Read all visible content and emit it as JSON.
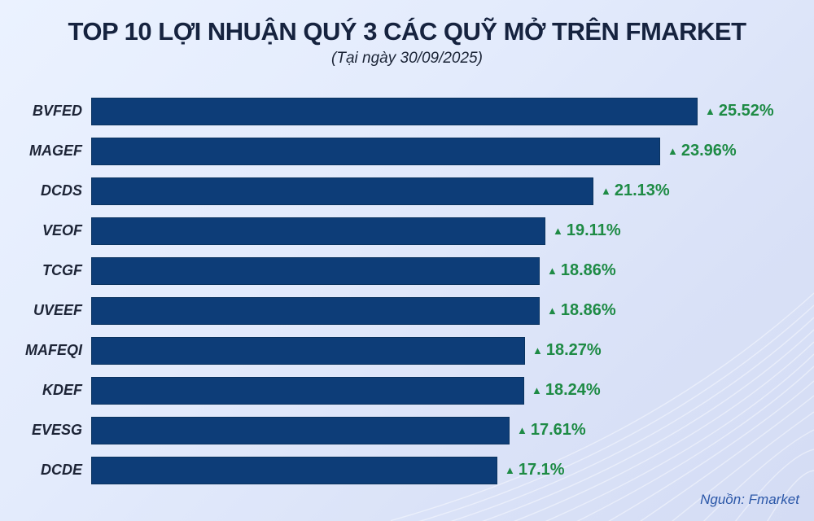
{
  "header": {
    "title": "TOP 10 LỢI NHUẬN QUÝ 3 CÁC QUỸ MỞ TRÊN FMARKET",
    "subtitle": "(Tại ngày 30/09/2025)"
  },
  "footer": {
    "source": "Nguồn: Fmarket"
  },
  "colors": {
    "bar": "#0d3d78",
    "value_text": "#1e8b45",
    "title_text": "#16233f",
    "source_text": "#2b57a8",
    "background_start": "#ebf2ff",
    "background_end": "#d4dcf4"
  },
  "chart_data": {
    "type": "bar",
    "orientation": "horizontal",
    "title": "TOP 10 LỢI NHUẬN QUÝ 3 CÁC QUỸ MỞ TRÊN FMARKET",
    "subtitle": "(Tại ngày 30/09/2025)",
    "categories": [
      "BVFED",
      "MAGEF",
      "DCDS",
      "VEOF",
      "TCGF",
      "UVEEF",
      "MAFEQI",
      "KDEF",
      "EVESG",
      "DCDE"
    ],
    "values": [
      25.52,
      23.96,
      21.13,
      19.11,
      18.86,
      18.86,
      18.27,
      18.24,
      17.61,
      17.1
    ],
    "value_labels": [
      "25.52%",
      "23.96%",
      "21.13%",
      "19.11%",
      "18.86%",
      "18.86%",
      "18.27%",
      "18.24%",
      "17.61%",
      "17.1%"
    ],
    "value_marker": "▲",
    "xlabel": "",
    "ylabel": "",
    "xlim": [
      0,
      25.52
    ],
    "grid": false,
    "legend": false,
    "source": "Nguồn: Fmarket"
  }
}
